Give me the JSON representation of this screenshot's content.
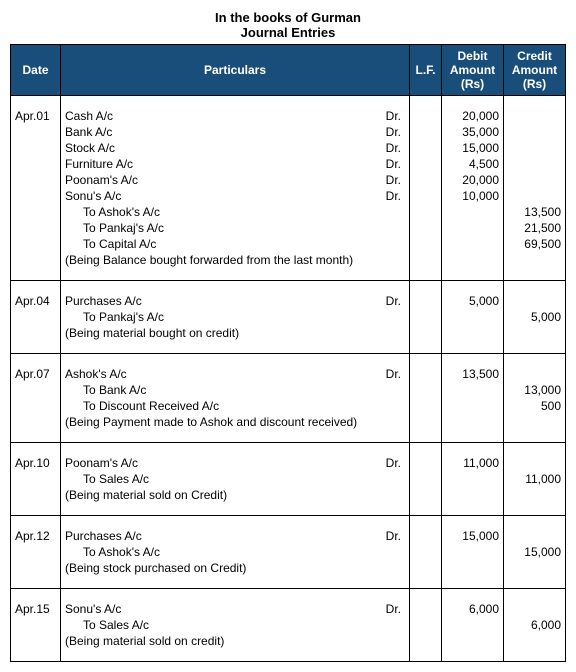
{
  "header": {
    "line1": "In the books of Gurman",
    "line2": "Journal Entries"
  },
  "columns": {
    "date": "Date",
    "particulars": "Particulars",
    "lf": "L.F.",
    "debit": "Debit Amount (Rs)",
    "credit": "Credit Amount (Rs)"
  },
  "dr_label": "Dr.",
  "entries": [
    {
      "date": "Apr.01",
      "lines": [
        {
          "text": "Cash A/c",
          "dr": true,
          "debit": "20,000",
          "credit": ""
        },
        {
          "text": "Bank A/c",
          "dr": true,
          "debit": "35,000",
          "credit": ""
        },
        {
          "text": "Stock A/c",
          "dr": true,
          "debit": "15,000",
          "credit": ""
        },
        {
          "text": "Furniture A/c",
          "dr": true,
          "debit": "4,500",
          "credit": ""
        },
        {
          "text": "Poonam's A/c",
          "dr": true,
          "debit": "20,000",
          "credit": ""
        },
        {
          "text": "Sonu's A/c",
          "dr": true,
          "debit": "10,000",
          "credit": ""
        },
        {
          "text": "To Ashok's A/c",
          "indent": true,
          "debit": "",
          "credit": "13,500"
        },
        {
          "text": "To Pankaj's A/c",
          "indent": true,
          "debit": "",
          "credit": "21,500"
        },
        {
          "text": "To Capital A/c",
          "indent": true,
          "debit": "",
          "credit": "69,500"
        }
      ],
      "narration": "(Being Balance bought forwarded from the last month)"
    },
    {
      "date": "Apr.04",
      "lines": [
        {
          "text": "Purchases A/c",
          "dr": true,
          "debit": "5,000",
          "credit": ""
        },
        {
          "text": "To Pankaj's A/c",
          "indent": true,
          "debit": "",
          "credit": "5,000"
        }
      ],
      "narration": "(Being material bought on credit)"
    },
    {
      "date": "Apr.07",
      "lines": [
        {
          "text": "Ashok's A/c",
          "dr": true,
          "debit": "13,500",
          "credit": ""
        },
        {
          "text": "To Bank A/c",
          "indent": true,
          "debit": "",
          "credit": "13,000"
        },
        {
          "text": "To Discount Received A/c",
          "indent": true,
          "debit": "",
          "credit": "500"
        }
      ],
      "narration": "(Being Payment made to Ashok and discount received)"
    },
    {
      "date": "Apr.10",
      "lines": [
        {
          "text": "Poonam's A/c",
          "dr": true,
          "debit": "11,000",
          "credit": ""
        },
        {
          "text": "To Sales A/c",
          "indent": true,
          "debit": "",
          "credit": "11,000"
        }
      ],
      "narration": "(Being material sold on Credit)"
    },
    {
      "date": "Apr.12",
      "lines": [
        {
          "text": "Purchases A/c",
          "dr": true,
          "debit": "15,000",
          "credit": ""
        },
        {
          "text": "To Ashok's A/c",
          "indent": true,
          "debit": "",
          "credit": "15,000"
        }
      ],
      "narration": "(Being stock purchased on Credit)"
    },
    {
      "date": "Apr.15",
      "lines": [
        {
          "text": "Sonu's A/c",
          "dr": true,
          "debit": "6,000",
          "credit": ""
        },
        {
          "text": "To Sales A/c",
          "indent": true,
          "debit": "",
          "credit": "6,000"
        }
      ],
      "narration": "(Being material sold on credit)"
    }
  ]
}
